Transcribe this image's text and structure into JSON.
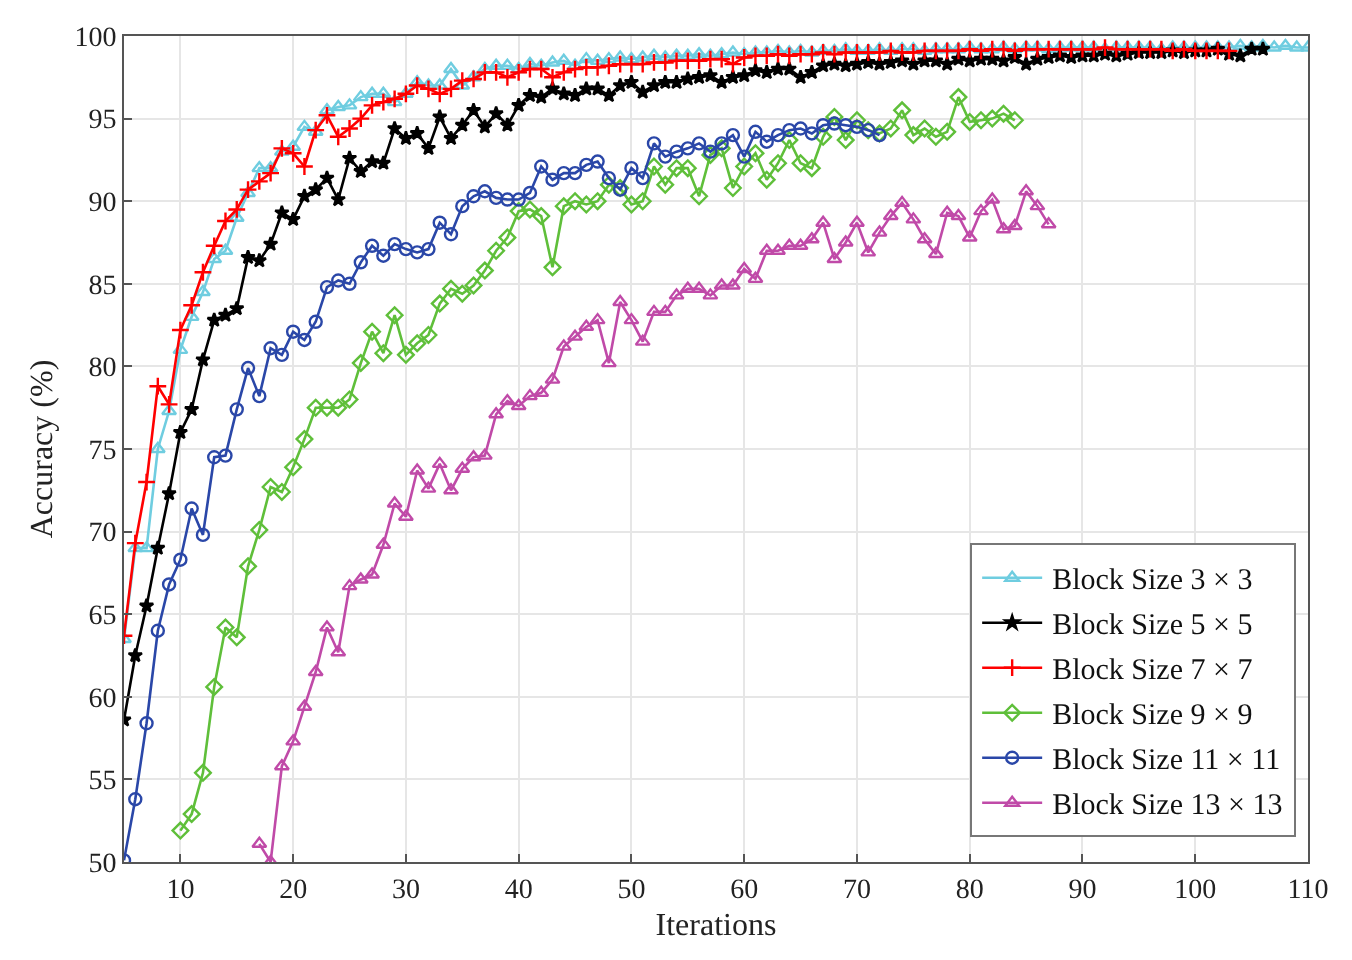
{
  "chart_data": {
    "type": "line",
    "xlabel": "Iterations",
    "ylabel": "Accuracy (%)",
    "xlim": [
      5,
      110
    ],
    "ylim": [
      50,
      100
    ],
    "xticks": [
      10,
      20,
      30,
      40,
      50,
      60,
      70,
      80,
      90,
      100,
      110
    ],
    "yticks": [
      50,
      55,
      60,
      65,
      70,
      75,
      80,
      85,
      90,
      95,
      100
    ],
    "grid": true,
    "legend": "bottom right",
    "line_style": "solid",
    "series": [
      {
        "name": "Block Size 3 × 3",
        "color": "#6fcde0",
        "marker": "triangle",
        "x": [
          5,
          6,
          7,
          8,
          9,
          10,
          11,
          12,
          13,
          14,
          15,
          16,
          17,
          18,
          19,
          20,
          21,
          22,
          23,
          24,
          25,
          26,
          27,
          28,
          29,
          30,
          31,
          32,
          33,
          34,
          35,
          36,
          37,
          38,
          39,
          40,
          41,
          42,
          43,
          44,
          45,
          46,
          47,
          48,
          49,
          50,
          51,
          52,
          53,
          54,
          55,
          56,
          57,
          58,
          59,
          60,
          61,
          62,
          63,
          64,
          65,
          66,
          67,
          68,
          69,
          70,
          71,
          72,
          73,
          74,
          75,
          76,
          77,
          78,
          79,
          80,
          81,
          82,
          83,
          84,
          85,
          86,
          87,
          88,
          89,
          90,
          91,
          92,
          93,
          94,
          95,
          96,
          97,
          98,
          99,
          100,
          101,
          102,
          103,
          104,
          105,
          106,
          107,
          108,
          109,
          110
        ],
        "values": [
          63.5,
          69,
          69,
          75,
          77.3,
          81,
          83,
          84.5,
          86.5,
          87,
          89,
          90.5,
          92,
          92,
          93,
          93.3,
          94.5,
          94.2,
          95.5,
          95.7,
          95.8,
          96.3,
          96.5,
          96.5,
          96,
          96.5,
          97.2,
          97,
          97,
          98,
          97,
          97.5,
          98,
          98.2,
          98.2,
          98,
          98.3,
          98.2,
          98.4,
          98.5,
          98.2,
          98.6,
          98.5,
          98.6,
          98.7,
          98.6,
          98.7,
          98.8,
          98.7,
          98.8,
          98.8,
          98.9,
          98.8,
          98.9,
          99,
          98.9,
          99,
          99,
          99.1,
          99,
          99.1,
          99,
          99.1,
          99.1,
          99.2,
          99.1,
          99.1,
          99.2,
          99.1,
          99.2,
          99.2,
          99.1,
          99.2,
          99.2,
          99.2,
          99.3,
          99.2,
          99.2,
          99.3,
          99.2,
          99.3,
          99.3,
          99.2,
          99.3,
          99.3,
          99.3,
          99.3,
          99.2,
          99.3,
          99.3,
          99.3,
          99.3,
          99.2,
          99.3,
          99.3,
          99.3,
          99.3,
          99.3,
          99.3,
          99.4,
          99.3,
          99.4,
          99.3,
          99.4,
          99.3,
          99.3
        ]
      },
      {
        "name": "Block Size 5 × 5",
        "color": "#000000",
        "marker": "star",
        "x": [
          5,
          6,
          7,
          8,
          9,
          10,
          11,
          12,
          13,
          14,
          15,
          16,
          17,
          18,
          19,
          20,
          21,
          22,
          23,
          24,
          25,
          26,
          27,
          28,
          29,
          30,
          31,
          32,
          33,
          34,
          35,
          36,
          37,
          38,
          39,
          40,
          41,
          42,
          43,
          44,
          45,
          46,
          47,
          48,
          49,
          50,
          51,
          52,
          53,
          54,
          55,
          56,
          57,
          58,
          59,
          60,
          61,
          62,
          63,
          64,
          65,
          66,
          67,
          68,
          69,
          70,
          71,
          72,
          73,
          74,
          75,
          76,
          77,
          78,
          79,
          80,
          81,
          82,
          83,
          84,
          85,
          86,
          87,
          88,
          89,
          90,
          91,
          92,
          93,
          94,
          95,
          96,
          97,
          98,
          99,
          100,
          101,
          102,
          103,
          104,
          105,
          106
        ],
        "values": [
          58.6,
          62.5,
          65.5,
          69,
          72.3,
          76,
          77.4,
          80.4,
          82.8,
          83.1,
          83.5,
          86.6,
          86.4,
          87.4,
          89.3,
          88.9,
          90.3,
          90.7,
          91.4,
          90.1,
          92.6,
          91.8,
          92.4,
          92.3,
          94.4,
          93.8,
          94.1,
          93.2,
          95.1,
          93.8,
          94.6,
          95.5,
          94.5,
          95.3,
          94.6,
          95.8,
          96.4,
          96.3,
          96.8,
          96.5,
          96.4,
          96.8,
          96.8,
          96.4,
          97,
          97.2,
          96.6,
          97,
          97.2,
          97.2,
          97.4,
          97.5,
          97.6,
          97.2,
          97.5,
          97.6,
          97.9,
          97.8,
          98,
          98,
          97.5,
          97.8,
          98.2,
          98.3,
          98.2,
          98.3,
          98.4,
          98.3,
          98.4,
          98.5,
          98.3,
          98.5,
          98.5,
          98.3,
          98.6,
          98.5,
          98.6,
          98.6,
          98.5,
          98.7,
          98.3,
          98.6,
          98.7,
          98.8,
          98.7,
          98.8,
          98.8,
          98.9,
          98.8,
          98.9,
          99,
          99,
          99,
          99.1,
          99,
          99.1,
          99.1,
          99.2,
          98.9,
          98.8,
          99.2,
          99.2
        ]
      },
      {
        "name": "Block Size 7 × 7",
        "color": "#ff0000",
        "marker": "cross",
        "x": [
          5,
          6,
          7,
          8,
          9,
          10,
          11,
          12,
          13,
          14,
          15,
          16,
          17,
          18,
          19,
          20,
          21,
          22,
          23,
          24,
          25,
          26,
          27,
          28,
          29,
          30,
          31,
          32,
          33,
          34,
          35,
          36,
          37,
          38,
          39,
          40,
          41,
          42,
          43,
          44,
          45,
          46,
          47,
          48,
          49,
          50,
          51,
          52,
          53,
          54,
          55,
          56,
          57,
          58,
          59,
          60,
          61,
          62,
          63,
          64,
          65,
          66,
          67,
          68,
          69,
          70,
          71,
          72,
          73,
          74,
          75,
          76,
          77,
          78,
          79,
          80,
          81,
          82,
          83,
          84,
          85,
          86,
          87,
          88,
          89,
          90,
          91,
          92,
          93,
          94,
          95,
          96,
          97,
          98,
          99,
          100,
          101,
          102,
          103
        ],
        "values": [
          63.7,
          69.3,
          73,
          78.8,
          77.7,
          82.2,
          83.7,
          85.7,
          87.3,
          88.8,
          89.5,
          90.7,
          91.2,
          91.7,
          93.2,
          92.9,
          92.1,
          94.3,
          95.2,
          93.9,
          94.4,
          95,
          95.8,
          96,
          96.2,
          96.5,
          97,
          96.8,
          96.5,
          96.8,
          97.3,
          97.4,
          97.8,
          97.8,
          97.5,
          97.8,
          98,
          98,
          97.5,
          97.8,
          98,
          98.1,
          98.1,
          98.2,
          98.3,
          98.3,
          98.3,
          98.4,
          98.4,
          98.5,
          98.5,
          98.5,
          98.6,
          98.6,
          98.3,
          98.7,
          98.8,
          98.8,
          98.9,
          98.8,
          98.9,
          98.9,
          99,
          98.9,
          99,
          99,
          99,
          99,
          99.1,
          99,
          99,
          99.1,
          99.1,
          99.1,
          99.1,
          99.2,
          99.1,
          99.2,
          99.2,
          99.1,
          99.2,
          99.2,
          99.2,
          99.2,
          99.2,
          99.2,
          99.2,
          99.3,
          99.2,
          99.2,
          99.2,
          99.2,
          99.2,
          99.1,
          99.2,
          99.1,
          99.1,
          99.1,
          99.1
        ]
      },
      {
        "name": "Block Size 9 × 9",
        "color": "#5fbf3a",
        "marker": "diamond",
        "x": [
          10,
          11,
          12,
          13,
          14,
          15,
          16,
          17,
          18,
          19,
          20,
          21,
          22,
          23,
          24,
          25,
          26,
          27,
          28,
          29,
          30,
          31,
          32,
          33,
          34,
          35,
          36,
          37,
          38,
          39,
          40,
          41,
          42,
          43,
          44,
          45,
          46,
          47,
          48,
          49,
          50,
          51,
          52,
          53,
          54,
          55,
          56,
          57,
          58,
          59,
          60,
          61,
          62,
          63,
          64,
          65,
          66,
          67,
          68,
          69,
          70,
          71,
          72,
          73,
          74,
          75,
          76,
          77,
          78,
          79,
          80,
          81,
          82,
          83,
          84
        ],
        "values": [
          51.9,
          52.9,
          55.4,
          60.6,
          64.2,
          63.6,
          67.9,
          70.1,
          72.7,
          72.4,
          73.9,
          75.6,
          77.5,
          77.5,
          77.5,
          78,
          80.2,
          82.1,
          80.8,
          83.1,
          80.7,
          81.4,
          81.9,
          83.8,
          84.7,
          84.4,
          84.9,
          85.8,
          87,
          87.8,
          89.4,
          89.5,
          89.1,
          86,
          89.7,
          90,
          89.8,
          90,
          91,
          90.8,
          89.8,
          90,
          92.1,
          91,
          92,
          92,
          90.3,
          92.8,
          93.2,
          90.8,
          92.1,
          92.9,
          91.3,
          92.3,
          93.7,
          92.3,
          92,
          93.9,
          95.1,
          93.7,
          94.9,
          94.3,
          94.1,
          94.4,
          95.5,
          94,
          94.4,
          93.9,
          94.2,
          96.3,
          94.8,
          94.9,
          95,
          95.3,
          94.9
        ]
      },
      {
        "name": "Block Size 11 × 11",
        "color": "#2a47a8",
        "marker": "circle",
        "x": [
          5,
          6,
          7,
          8,
          9,
          10,
          11,
          12,
          13,
          14,
          15,
          16,
          17,
          18,
          19,
          20,
          21,
          22,
          23,
          24,
          25,
          26,
          27,
          28,
          29,
          30,
          31,
          32,
          33,
          34,
          35,
          36,
          37,
          38,
          39,
          40,
          41,
          42,
          43,
          44,
          45,
          46,
          47,
          48,
          49,
          50,
          51,
          52,
          53,
          54,
          55,
          56,
          57,
          58,
          59,
          60,
          61,
          62,
          63,
          64,
          65,
          66,
          67,
          68,
          69,
          70,
          71,
          72
        ],
        "values": [
          50.1,
          53.8,
          58.4,
          64,
          66.8,
          68.3,
          71.4,
          69.8,
          74.5,
          74.6,
          77.4,
          79.9,
          78.2,
          81.1,
          80.7,
          82.1,
          81.6,
          82.7,
          84.8,
          85.2,
          85,
          86.3,
          87.3,
          86.7,
          87.4,
          87.1,
          86.9,
          87.1,
          88.7,
          88,
          89.7,
          90.3,
          90.6,
          90.2,
          90.1,
          90.1,
          90.5,
          92.1,
          91.3,
          91.7,
          91.7,
          92.2,
          92.4,
          91.4,
          90.7,
          92,
          91.4,
          93.5,
          92.7,
          93,
          93.2,
          93.5,
          93,
          93.5,
          94,
          92.7,
          94.2,
          93.6,
          94,
          94.3,
          94.4,
          94.1,
          94.6,
          94.7,
          94.6,
          94.5,
          94.3,
          94
        ]
      },
      {
        "name": "Block Size 13 × 13",
        "color": "#c04aa8",
        "marker": "triangle",
        "x": [
          17,
          18,
          19,
          20,
          21,
          22,
          23,
          24,
          25,
          26,
          27,
          28,
          29,
          30,
          31,
          32,
          33,
          34,
          35,
          36,
          37,
          38,
          39,
          40,
          41,
          42,
          43,
          44,
          45,
          46,
          47,
          48,
          49,
          50,
          51,
          52,
          53,
          54,
          55,
          56,
          57,
          58,
          59,
          60,
          61,
          62,
          63,
          64,
          65,
          66,
          67,
          68,
          69,
          70,
          71,
          72,
          73,
          74,
          75,
          76,
          77,
          78,
          79,
          80,
          81,
          82,
          83,
          84,
          85,
          86,
          87
        ],
        "values": [
          51.1,
          50,
          55.8,
          57.3,
          59.4,
          61.5,
          64.2,
          62.7,
          66.7,
          67.1,
          67.4,
          69.2,
          71.7,
          70.9,
          73.7,
          72.6,
          74.1,
          72.5,
          73.8,
          74.5,
          74.6,
          77.1,
          77.9,
          77.6,
          78.2,
          78.4,
          79.2,
          81.2,
          81.8,
          82.4,
          82.8,
          80.2,
          83.9,
          82.8,
          81.5,
          83.3,
          83.3,
          84.3,
          84.7,
          84.7,
          84.3,
          84.9,
          84.9,
          85.9,
          85.3,
          87,
          87,
          87.3,
          87.3,
          87.7,
          88.7,
          86.5,
          87.5,
          88.7,
          86.9,
          88.1,
          89.1,
          89.9,
          88.9,
          87.7,
          86.8,
          89.3,
          89.1,
          87.8,
          89.4,
          90.1,
          88.3,
          88.5,
          90.6,
          89.7,
          88.6
        ]
      }
    ]
  }
}
